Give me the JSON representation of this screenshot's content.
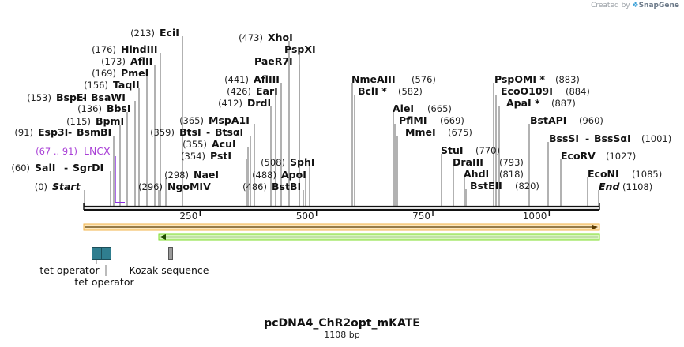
{
  "branding": {
    "prefix": "Created by",
    "product": "SnapGene"
  },
  "map": {
    "name": "pcDNA4_ChR2opt_mKATE",
    "length_label": "1108 bp",
    "total_bp": 1108,
    "ticks": [
      250,
      500,
      750,
      1000
    ],
    "colors": {
      "backbone": "#111111",
      "orange_arrow": "#f2b34a",
      "green_arrow": "#7ddc2a",
      "tet_operator": "#2f7e8f",
      "kozak": "#9a9a9a",
      "lncx": "#8a2be2"
    }
  },
  "sites": [
    {
      "pos": "(0)",
      "name": "Start",
      "italic": true
    },
    {
      "pos": "(60)",
      "name": "SalI",
      "name2": "SgrDI"
    },
    {
      "pos": "(91)",
      "name": "Esp3I",
      "name2": "BsmBI"
    },
    {
      "pos": "(115)",
      "name": "BpmI"
    },
    {
      "pos": "(136)",
      "name": "BbsI"
    },
    {
      "pos": "(153)",
      "name": "BspEI",
      "name2": "BsaWI"
    },
    {
      "pos": "(156)",
      "name": "TaqII"
    },
    {
      "pos": "(169)",
      "name": "PmeI"
    },
    {
      "pos": "(173)",
      "name": "AflII"
    },
    {
      "pos": "(176)",
      "name": "HindIII"
    },
    {
      "pos": "(213)",
      "name": "EciI"
    },
    {
      "pos": "(296)",
      "name": "NgoMIV"
    },
    {
      "pos": "(298)",
      "name": "NaeI"
    },
    {
      "pos": "(354)",
      "name": "PstI"
    },
    {
      "pos": "(355)",
      "name": "AcuI"
    },
    {
      "pos": "(359)",
      "name": "BtsI",
      "name2": "BtsαI"
    },
    {
      "pos": "(365)",
      "name": "MspA1I"
    },
    {
      "pos": "(412)",
      "name": "DrdI"
    },
    {
      "pos": "(426)",
      "name": "EarI"
    },
    {
      "pos": "(441)",
      "name": "AflIII"
    },
    {
      "pos": "(473)",
      "name": "XhoI"
    },
    {
      "name": "PspXI"
    },
    {
      "name": "PaeR7I"
    },
    {
      "pos": "(486)",
      "name": "BstBI"
    },
    {
      "pos": "(488)",
      "name": "ApoI"
    },
    {
      "pos": "(508)",
      "name": "SphI"
    },
    {
      "pos": "(576)",
      "name": "NmeAIII"
    },
    {
      "pos": "(582)",
      "name": "BclI *"
    },
    {
      "pos": "(665)",
      "name": "AleI"
    },
    {
      "pos": "(669)",
      "name": "PflMI"
    },
    {
      "pos": "(675)",
      "name": "MmeI"
    },
    {
      "pos": "(770)",
      "name": "StuI"
    },
    {
      "pos": "(793)",
      "name": "DraIII"
    },
    {
      "pos": "(818)",
      "name": "AhdI"
    },
    {
      "pos": "(820)",
      "name": "BstEII"
    },
    {
      "pos": "(883)",
      "name": "PspOMI *"
    },
    {
      "pos": "(884)",
      "name": "EcoO109I"
    },
    {
      "pos": "(887)",
      "name": "ApaI *"
    },
    {
      "pos": "(960)",
      "name": "BstAPI"
    },
    {
      "pos": "(1001)",
      "name": "BssSI",
      "name2": "BssSαI"
    },
    {
      "pos": "(1027)",
      "name": "EcoRV"
    },
    {
      "pos": "(1085)",
      "name": "EcoNI"
    },
    {
      "pos": "(1108)",
      "name": "End",
      "italic": true
    }
  ],
  "feature_label": {
    "range": "(67 .. 91)",
    "name": "LNCX"
  },
  "features": [
    {
      "name": "tet operator"
    },
    {
      "name": "tet operator"
    },
    {
      "name": "Kozak sequence"
    }
  ]
}
